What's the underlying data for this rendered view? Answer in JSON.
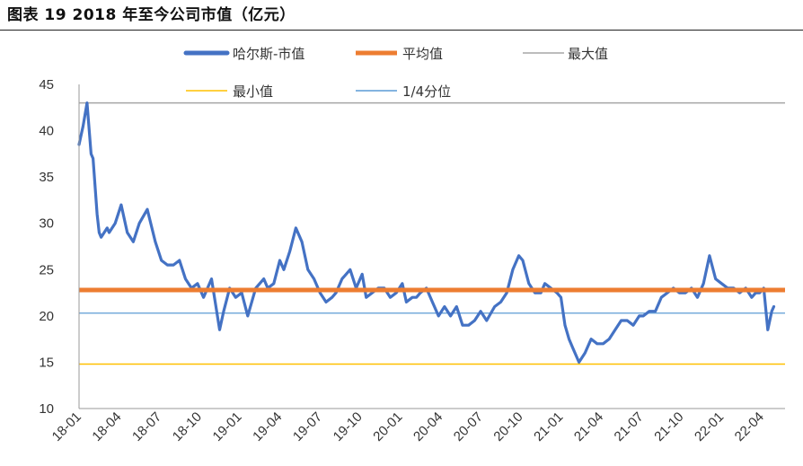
{
  "header": {
    "figure_title": "图表 19 2018 年至今公司市值（亿元）"
  },
  "chart_data": {
    "type": "line",
    "title": "图表 19 2018 年至今公司市值（亿元）",
    "xlabel": "",
    "ylabel": "",
    "ylim": [
      10,
      45
    ],
    "yticks": [
      "10",
      "15",
      "20",
      "25",
      "30",
      "35",
      "40",
      "45"
    ],
    "xtick_labels": [
      "18-01",
      "18-04",
      "18-07",
      "18-10",
      "19-01",
      "19-04",
      "19-07",
      "19-10",
      "20-01",
      "20-04",
      "20-07",
      "20-10",
      "21-01",
      "21-04",
      "21-07",
      "21-10",
      "22-01",
      "22-04"
    ],
    "legend": [
      "哈尔斯-市值",
      "平均值",
      "最大值",
      "最小值",
      "1/4分位"
    ],
    "colors": {
      "market_cap": "#4472C4",
      "mean": "#ED7D31",
      "max": "#A5A5A5",
      "min": "#FFC000",
      "quartile": "#5B9BD5"
    },
    "series": [
      {
        "name": "哈尔斯-市值",
        "x": [
          0.0,
          0.1,
          0.2,
          0.3,
          0.35,
          0.45,
          0.5,
          0.55,
          0.7,
          0.75,
          0.9,
          1.05,
          1.2,
          1.35,
          1.5,
          1.7,
          1.9,
          2.05,
          2.2,
          2.35,
          2.5,
          2.65,
          2.8,
          2.95,
          3.1,
          3.3,
          3.5,
          3.6,
          3.75,
          3.9,
          4.05,
          4.2,
          4.4,
          4.6,
          4.7,
          4.85,
          5.0,
          5.1,
          5.25,
          5.4,
          5.55,
          5.7,
          5.85,
          6.0,
          6.15,
          6.3,
          6.4,
          6.55,
          6.75,
          6.9,
          7.05,
          7.15,
          7.3,
          7.45,
          7.6,
          7.75,
          7.9,
          8.05,
          8.15,
          8.3,
          8.4,
          8.5,
          8.65,
          8.8,
          8.95,
          9.1,
          9.25,
          9.4,
          9.55,
          9.7,
          9.85,
          10.0,
          10.15,
          10.35,
          10.5,
          10.65,
          10.8,
          10.95,
          11.05,
          11.2,
          11.35,
          11.5,
          11.6,
          11.75,
          11.9,
          12.0,
          12.1,
          12.2,
          12.3,
          12.45,
          12.6,
          12.75,
          12.9,
          13.05,
          13.2,
          13.35,
          13.5,
          13.65,
          13.8,
          13.95,
          14.05,
          14.2,
          14.35,
          14.5,
          14.65,
          14.8,
          14.95,
          15.1,
          15.25,
          15.4,
          15.55,
          15.7,
          15.85,
          16.0,
          16.15,
          16.3,
          16.45,
          16.6,
          16.75,
          16.85,
          16.95,
          17.05,
          17.15,
          17.25,
          17.3
        ],
        "values": [
          38.5,
          40.5,
          43.0,
          37.5,
          37.0,
          31.0,
          29.0,
          28.5,
          29.5,
          29.0,
          30.0,
          32.0,
          29.0,
          28.0,
          30.0,
          31.5,
          28.0,
          26.0,
          25.5,
          25.5,
          26.0,
          24.0,
          23.0,
          23.5,
          22.0,
          24.0,
          18.5,
          20.5,
          23.0,
          22.0,
          22.5,
          20.0,
          23.0,
          24.0,
          23.0,
          23.5,
          26.0,
          25.0,
          27.0,
          29.5,
          28.0,
          25.0,
          24.0,
          22.5,
          21.5,
          22.0,
          22.5,
          24.0,
          25.0,
          23.0,
          24.5,
          22.0,
          22.5,
          23.0,
          23.0,
          22.0,
          22.5,
          23.5,
          21.5,
          22.0,
          22.0,
          22.5,
          23.0,
          21.5,
          20.0,
          21.0,
          20.0,
          21.0,
          19.0,
          19.0,
          19.5,
          20.5,
          19.5,
          21.0,
          21.5,
          22.5,
          25.0,
          26.5,
          26.0,
          23.5,
          22.5,
          22.5,
          23.5,
          23.0,
          22.5,
          22.0,
          19.0,
          17.5,
          16.5,
          15.0,
          16.0,
          17.5,
          17.0,
          17.0,
          17.5,
          18.5,
          19.5,
          19.5,
          19.0,
          20.0,
          20.0,
          20.5,
          20.5,
          22.0,
          22.5,
          23.0,
          22.5,
          22.5,
          23.0,
          22.0,
          23.5,
          26.5,
          24.0,
          23.5,
          23.0,
          23.0,
          22.5,
          23.0,
          22.0,
          22.5,
          22.5,
          23.0,
          18.5,
          20.5,
          21.0
        ]
      },
      {
        "name": "平均值",
        "constant": 22.8
      },
      {
        "name": "最大值",
        "constant": 43.0
      },
      {
        "name": "最小值",
        "constant": 14.8
      },
      {
        "name": "1/4分位",
        "constant": 20.3
      }
    ]
  }
}
